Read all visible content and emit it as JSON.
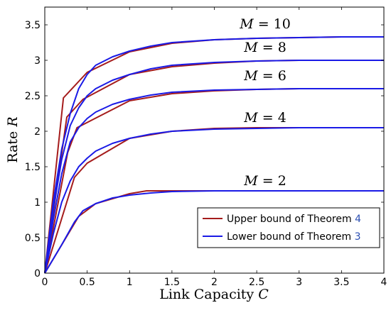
{
  "chart_data": {
    "type": "line",
    "xlabel": "Link Capacity",
    "xlabel_var": "C",
    "ylabel": "Rate",
    "ylabel_var": "R",
    "xlim": [
      0,
      4
    ],
    "ylim": [
      0,
      3.75
    ],
    "xticks": [
      "0",
      "0.5",
      "1",
      "1.5",
      "2",
      "2.5",
      "3",
      "3.5",
      "4"
    ],
    "yticks": [
      "0",
      "0.5",
      "1",
      "1.5",
      "2",
      "2.5",
      "3",
      "3.5"
    ],
    "grid": false,
    "legend_position": "bottom-right",
    "legend": [
      {
        "label": "Upper bound of Theorem",
        "ref": "4",
        "color": "#a51c1c"
      },
      {
        "label": "Lower bound of Theorem",
        "ref": "3",
        "color": "#1a1ae6"
      }
    ],
    "annotations": [
      {
        "text": "M = 10",
        "var": "M",
        "value": "10",
        "x": 2.6,
        "y": 3.45
      },
      {
        "text": "M = 8",
        "var": "M",
        "value": "8",
        "x": 2.6,
        "y": 3.12
      },
      {
        "text": "M = 6",
        "var": "M",
        "value": "6",
        "x": 2.6,
        "y": 2.72
      },
      {
        "text": "M = 4",
        "var": "M",
        "value": "4",
        "x": 2.6,
        "y": 2.13
      },
      {
        "text": "M = 2",
        "var": "M",
        "value": "2",
        "x": 2.6,
        "y": 1.24
      }
    ],
    "series": [
      {
        "group": "M = 10",
        "kind": "upper",
        "color": "#a51c1c",
        "x": [
          0,
          0.22,
          0.5,
          1.0,
          1.5,
          2.0,
          2.5,
          3.0,
          3.5,
          4.0
        ],
        "y": [
          0,
          2.47,
          2.83,
          3.12,
          3.24,
          3.29,
          3.31,
          3.32,
          3.33,
          3.33
        ]
      },
      {
        "group": "M = 10",
        "kind": "lower",
        "color": "#1a1ae6",
        "x": [
          0,
          0.1,
          0.2,
          0.3,
          0.4,
          0.5,
          0.6,
          0.8,
          1.0,
          1.25,
          1.5,
          2.0,
          2.5,
          3.0,
          3.5,
          4.0
        ],
        "y": [
          0,
          1.0,
          1.75,
          2.25,
          2.6,
          2.8,
          2.93,
          3.05,
          3.13,
          3.2,
          3.25,
          3.29,
          3.31,
          3.32,
          3.33,
          3.33
        ]
      },
      {
        "group": "M = 8",
        "kind": "upper",
        "color": "#a51c1c",
        "x": [
          0,
          0.26,
          0.45,
          1.0,
          1.5,
          2.0,
          2.5,
          3.0,
          3.5,
          4.0
        ],
        "y": [
          0,
          2.2,
          2.45,
          2.8,
          2.91,
          2.96,
          2.99,
          3.0,
          3.0,
          3.0
        ]
      },
      {
        "group": "M = 8",
        "kind": "lower",
        "color": "#1a1ae6",
        "x": [
          0,
          0.1,
          0.2,
          0.3,
          0.4,
          0.5,
          0.6,
          0.8,
          1.0,
          1.25,
          1.5,
          2.0,
          2.5,
          3.0,
          3.5,
          4.0
        ],
        "y": [
          0,
          0.9,
          1.6,
          2.08,
          2.33,
          2.5,
          2.6,
          2.72,
          2.8,
          2.88,
          2.93,
          2.97,
          2.99,
          3.0,
          3.0,
          3.0
        ]
      },
      {
        "group": "M = 6",
        "kind": "upper",
        "color": "#a51c1c",
        "x": [
          0,
          0.27,
          0.38,
          1.0,
          1.5,
          2.0,
          2.5,
          3.0,
          3.5,
          4.0
        ],
        "y": [
          0,
          1.7,
          2.05,
          2.43,
          2.53,
          2.57,
          2.59,
          2.6,
          2.6,
          2.6
        ]
      },
      {
        "group": "M = 6",
        "kind": "lower",
        "color": "#1a1ae6",
        "x": [
          0,
          0.1,
          0.2,
          0.3,
          0.4,
          0.5,
          0.6,
          0.8,
          1.0,
          1.25,
          1.5,
          2.0,
          2.5,
          3.0,
          3.5,
          4.0
        ],
        "y": [
          0,
          0.75,
          1.4,
          1.85,
          2.05,
          2.18,
          2.27,
          2.38,
          2.45,
          2.51,
          2.55,
          2.58,
          2.59,
          2.6,
          2.6,
          2.6
        ]
      },
      {
        "group": "M = 4",
        "kind": "upper",
        "color": "#a51c1c",
        "x": [
          0,
          0.35,
          0.5,
          1.0,
          1.5,
          2.0,
          2.5,
          3.0,
          3.5,
          4.0
        ],
        "y": [
          0,
          1.35,
          1.55,
          1.9,
          2.0,
          2.04,
          2.05,
          2.05,
          2.05,
          2.05
        ]
      },
      {
        "group": "M = 4",
        "kind": "lower",
        "color": "#1a1ae6",
        "x": [
          0,
          0.1,
          0.2,
          0.3,
          0.4,
          0.5,
          0.6,
          0.8,
          1.0,
          1.25,
          1.5,
          2.0,
          2.5,
          3.0,
          3.5,
          4.0
        ],
        "y": [
          0,
          0.55,
          1.0,
          1.3,
          1.5,
          1.62,
          1.72,
          1.83,
          1.9,
          1.96,
          2.0,
          2.03,
          2.04,
          2.05,
          2.05,
          2.05
        ]
      },
      {
        "group": "M = 2",
        "kind": "upper",
        "color": "#a51c1c",
        "x": [
          0,
          0.4,
          0.6,
          1.0,
          1.2,
          1.5,
          2.0,
          2.5,
          3.0,
          3.5,
          4.0
        ],
        "y": [
          0,
          0.8,
          0.98,
          1.12,
          1.16,
          1.16,
          1.16,
          1.16,
          1.16,
          1.16,
          1.16
        ]
      },
      {
        "group": "M = 2",
        "kind": "lower",
        "color": "#1a1ae6",
        "x": [
          0,
          0.2,
          0.35,
          0.45,
          0.6,
          0.8,
          1.0,
          1.25,
          1.5,
          2.0,
          2.5,
          3.0,
          3.5,
          4.0
        ],
        "y": [
          0,
          0.4,
          0.72,
          0.88,
          0.98,
          1.06,
          1.1,
          1.13,
          1.15,
          1.16,
          1.16,
          1.16,
          1.16,
          1.16
        ]
      }
    ]
  }
}
